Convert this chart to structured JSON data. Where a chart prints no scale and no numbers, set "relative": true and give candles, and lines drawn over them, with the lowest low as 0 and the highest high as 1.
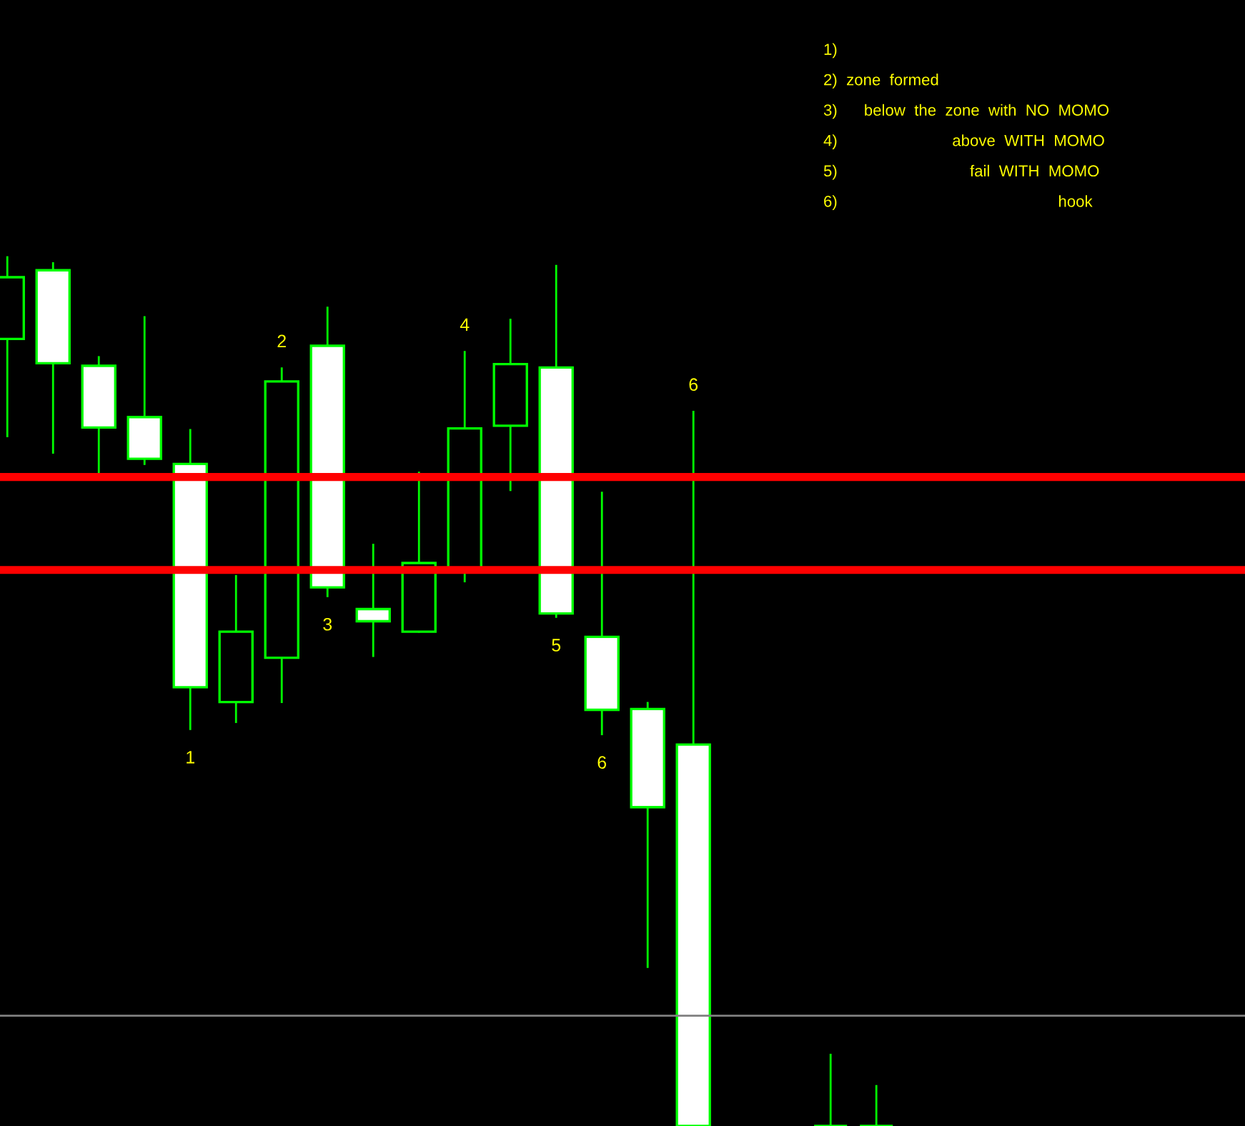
{
  "chart_data": {
    "type": "candlestick",
    "relative": true,
    "categories": [
      null,
      null,
      null,
      null,
      null,
      null,
      null,
      null,
      null,
      null,
      null,
      null,
      null,
      null,
      null,
      null,
      null,
      null,
      null,
      null
    ],
    "ohlc": [
      [
        0.906,
        1.0,
        0.794,
        0.977
      ],
      [
        0.985,
        0.993,
        0.775,
        0.878
      ],
      [
        0.875,
        0.885,
        0.75,
        0.804
      ],
      [
        0.816,
        0.931,
        0.762,
        0.768
      ],
      [
        0.762,
        0.801,
        0.457,
        0.505
      ],
      [
        0.488,
        0.633,
        0.465,
        0.569
      ],
      [
        0.539,
        0.872,
        0.488,
        0.857
      ],
      [
        0.898,
        0.942,
        0.61,
        0.62
      ],
      [
        0.595,
        0.669,
        0.541,
        0.581
      ],
      [
        0.569,
        0.752,
        0.569,
        0.648
      ],
      [
        0.64,
        0.891,
        0.627,
        0.803
      ],
      [
        0.806,
        0.928,
        0.732,
        0.877
      ],
      [
        0.873,
        0.99,
        0.586,
        0.59
      ],
      [
        0.563,
        0.729,
        0.451,
        0.479
      ],
      [
        0.48,
        0.487,
        0.183,
        0.367
      ],
      [
        0.439,
        0.822,
        0.0,
        0.0
      ],
      null,
      null,
      [
        0.0,
        0.082,
        0.0,
        0.0
      ],
      [
        0.0,
        0.046,
        0.0,
        0.0
      ]
    ],
    "value_labels": [
      null,
      null,
      null,
      null,
      "1",
      null,
      "2",
      "3",
      null,
      null,
      "4",
      null,
      "5",
      "6",
      null,
      "6",
      null,
      null,
      null,
      null
    ],
    "ref_lines": [
      {
        "axis": "y",
        "value": 0.747,
        "color": "#ff0000"
      },
      {
        "axis": "y",
        "value": 0.64,
        "color": "#ff0000"
      },
      {
        "axis": "y",
        "value": 0.127,
        "color": "#808080"
      }
    ],
    "annotations": [
      "1)",
      "2)  zone  formed",
      "3)      below  the  zone  with  NO  MOMO",
      "4)                          above  WITH  MOMO",
      "5)                              fail  WITH  MOMO",
      "6)                                                  hook"
    ]
  }
}
